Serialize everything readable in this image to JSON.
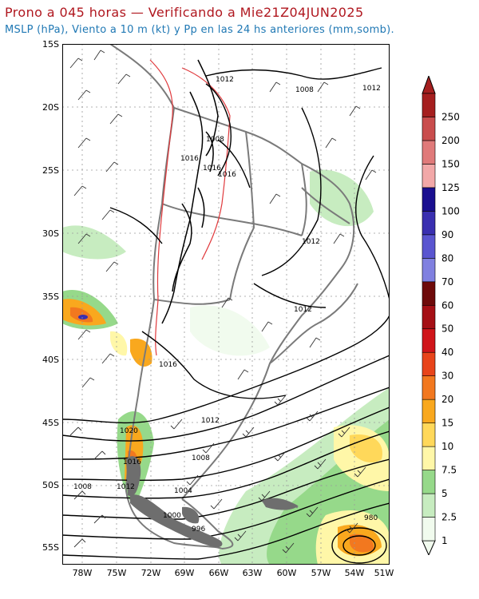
{
  "title_line1": "Prono a 045 horas — Verificando a Mie21Z04JUN2025",
  "title_line2": "MSLP (hPa), Viento a 10 m (kt) y Pp en las 24 hs anteriores (mm,somb).",
  "lat_labels": [
    "15S",
    "20S",
    "25S",
    "30S",
    "35S",
    "40S",
    "45S",
    "50S",
    "55S"
  ],
  "lon_labels": [
    "78W",
    "75W",
    "72W",
    "69W",
    "66W",
    "63W",
    "60W",
    "57W",
    "54W",
    "51W"
  ],
  "isobar_labels": [
    "1012",
    "1008",
    "1012",
    "1008",
    "1016",
    "1016",
    "1016",
    "1012",
    "1012",
    "1016",
    "1012",
    "1020",
    "1008",
    "1016",
    "1008",
    "1012",
    "1004",
    "1000",
    "996",
    "980"
  ],
  "colorbar": {
    "levels": [
      "1",
      "2.5",
      "5",
      "7.5",
      "10",
      "15",
      "20",
      "30",
      "40",
      "50",
      "60",
      "70",
      "80",
      "90",
      "100",
      "125",
      "150",
      "200",
      "250"
    ],
    "colors": [
      "#f1fbee",
      "#c7ecc0",
      "#96d98a",
      "#fff7a8",
      "#ffd85a",
      "#f9a81e",
      "#f2781f",
      "#e8441a",
      "#d0151a",
      "#a50f15",
      "#6e0a0a",
      "#8080e0",
      "#5a55d0",
      "#3a2fb0",
      "#1a0f90",
      "#f2a8a8",
      "#e07a7a",
      "#c94d4d",
      "#a51f1f"
    ]
  }
}
